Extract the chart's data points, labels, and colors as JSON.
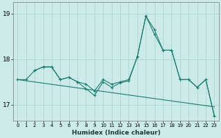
{
  "xlabel": "Humidex (Indice chaleur)",
  "background_color": "#cceae8",
  "grid_color": "#aad4d2",
  "line_color": "#1a7a6e",
  "xlim": [
    -0.5,
    23.5
  ],
  "ylim": [
    16.65,
    19.25
  ],
  "yticks": [
    17,
    18,
    19
  ],
  "xticks": [
    0,
    1,
    2,
    3,
    4,
    5,
    6,
    7,
    8,
    9,
    10,
    11,
    12,
    13,
    14,
    15,
    16,
    17,
    18,
    19,
    20,
    21,
    22,
    23
  ],
  "line1_x": [
    0,
    1,
    2,
    3,
    4,
    5,
    6,
    7,
    8,
    9,
    10,
    11,
    12,
    13,
    14,
    15,
    16,
    17,
    18,
    19,
    20,
    21,
    22,
    23
  ],
  "line1_y": [
    17.55,
    17.55,
    17.75,
    17.83,
    17.83,
    17.55,
    17.6,
    17.5,
    17.45,
    17.3,
    17.55,
    17.45,
    17.5,
    17.55,
    18.05,
    18.95,
    18.65,
    18.2,
    18.2,
    17.55,
    17.55,
    17.38,
    17.55,
    16.75
  ],
  "line2_x": [
    0,
    23
  ],
  "line2_y": [
    17.55,
    16.95
  ],
  "line3_x": [
    2,
    3,
    4,
    5,
    6,
    7,
    8,
    9,
    10,
    11,
    12,
    13,
    14,
    15,
    16,
    17,
    18,
    19,
    20,
    21,
    22,
    23
  ],
  "line3_y": [
    17.75,
    17.83,
    17.83,
    17.55,
    17.6,
    17.5,
    17.35,
    17.2,
    17.5,
    17.38,
    17.48,
    17.52,
    18.05,
    18.95,
    18.55,
    18.2,
    18.2,
    17.55,
    17.55,
    17.38,
    17.55,
    16.75
  ]
}
